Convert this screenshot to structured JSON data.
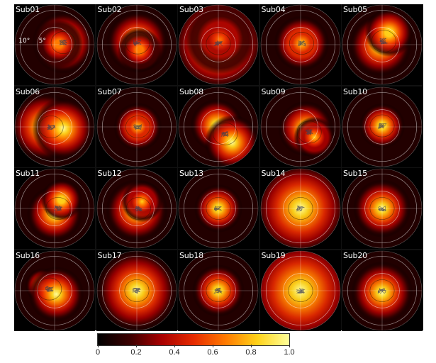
{
  "chart_data": {
    "type": "heatmap",
    "title": "",
    "panels": [
      {
        "label": "Sub01",
        "cx": 2.5,
        "cy": 0.6,
        "blobs": [
          [
            2.5,
            0.6,
            4.5,
            1.0
          ],
          [
            1.2,
            0.2,
            3.5,
            0.7
          ]
        ]
      },
      {
        "label": "Sub02",
        "cx": 0.2,
        "cy": 0.5,
        "blobs": [
          [
            0.2,
            0.8,
            4.5,
            0.9
          ],
          [
            0.8,
            -1.5,
            3.2,
            0.7
          ]
        ]
      },
      {
        "label": "Sub03",
        "cx": 0.0,
        "cy": 0.3,
        "blobs": [
          [
            0.0,
            0.3,
            7.0,
            1.0
          ],
          [
            0.5,
            1.5,
            5.0,
            0.6
          ]
        ]
      },
      {
        "label": "Sub04",
        "cx": 0.3,
        "cy": 0.4,
        "blobs": [
          [
            0.3,
            0.4,
            4.0,
            0.85
          ]
        ]
      },
      {
        "label": "Sub05",
        "cx": 0.5,
        "cy": 1.0,
        "blobs": [
          [
            -0.5,
            -0.2,
            4.5,
            1.0
          ],
          [
            2.0,
            3.5,
            3.5,
            0.9
          ]
        ]
      },
      {
        "label": "Sub06",
        "cx": -1.0,
        "cy": 0.0,
        "blobs": [
          [
            -3.0,
            0.0,
            5.0,
            1.0
          ],
          [
            2.5,
            -0.5,
            4.5,
            0.95
          ]
        ]
      },
      {
        "label": "Sub07",
        "cx": 0.3,
        "cy": 0.0,
        "blobs": [
          [
            0.3,
            0.0,
            3.5,
            0.85
          ]
        ]
      },
      {
        "label": "Sub08",
        "cx": 2.0,
        "cy": -2.0,
        "blobs": [
          [
            -0.5,
            0.5,
            3.8,
            0.95
          ],
          [
            4.0,
            -4.5,
            4.0,
            0.95
          ]
        ]
      },
      {
        "label": "Sub09",
        "cx": 2.5,
        "cy": -1.5,
        "blobs": [
          [
            1.5,
            -0.5,
            4.0,
            0.95
          ],
          [
            4.0,
            -3.0,
            3.0,
            0.8
          ]
        ]
      },
      {
        "label": "Sub10",
        "cx": 0.0,
        "cy": 0.3,
        "blobs": [
          [
            0.0,
            0.3,
            3.3,
            0.9
          ]
        ]
      },
      {
        "label": "Sub11",
        "cx": 1.0,
        "cy": 0.0,
        "blobs": [
          [
            0.0,
            -1.5,
            4.0,
            1.0
          ],
          [
            2.0,
            2.5,
            3.0,
            0.9
          ]
        ]
      },
      {
        "label": "Sub12",
        "cx": 0.5,
        "cy": 0.0,
        "blobs": [
          [
            0.0,
            -0.5,
            4.5,
            1.0
          ],
          [
            1.5,
            2.0,
            3.0,
            0.8
          ]
        ]
      },
      {
        "label": "Sub13",
        "cx": 0.0,
        "cy": 0.0,
        "blobs": [
          [
            0.0,
            0.0,
            3.5,
            0.9
          ]
        ]
      },
      {
        "label": "Sub14",
        "cx": 0.0,
        "cy": 0.0,
        "blobs": [
          [
            0.0,
            0.0,
            7.0,
            1.0
          ]
        ]
      },
      {
        "label": "Sub15",
        "cx": 0.0,
        "cy": 0.0,
        "blobs": [
          [
            0.0,
            0.0,
            4.2,
            0.95
          ]
        ]
      },
      {
        "label": "Sub16",
        "cx": -1.5,
        "cy": 0.5,
        "blobs": [
          [
            -3.5,
            1.5,
            2.5,
            1.0
          ],
          [
            0.5,
            -1.0,
            4.0,
            1.0
          ]
        ]
      },
      {
        "label": "Sub17",
        "cx": 0.0,
        "cy": 0.0,
        "blobs": [
          [
            0.0,
            0.0,
            6.0,
            0.95
          ]
        ]
      },
      {
        "label": "Sub18",
        "cx": 0.0,
        "cy": 0.0,
        "blobs": [
          [
            0.0,
            0.0,
            3.8,
            0.9
          ]
        ]
      },
      {
        "label": "Sub19",
        "cx": 0.0,
        "cy": 0.0,
        "blobs": [
          [
            0.0,
            0.0,
            8.0,
            1.0
          ]
        ]
      },
      {
        "label": "Sub20",
        "cx": 0.0,
        "cy": 0.0,
        "blobs": [
          [
            0.0,
            -0.5,
            4.5,
            1.0
          ]
        ]
      }
    ],
    "panel_annotations": {
      "outer_ecc": "10°",
      "inner_ecc": "5°"
    },
    "rings_deg": [
      5,
      10
    ],
    "max_ecc_deg": 11.5,
    "colorbar": {
      "ticks": [
        "0",
        "0.2",
        "0.4",
        "0.6",
        "0.8",
        "1.0"
      ],
      "range": [
        0,
        1
      ],
      "stops": [
        "#000000",
        "#3a0000",
        "#a80000",
        "#e62a00",
        "#ff7a00",
        "#ffd21a",
        "#ffff9a"
      ]
    }
  }
}
